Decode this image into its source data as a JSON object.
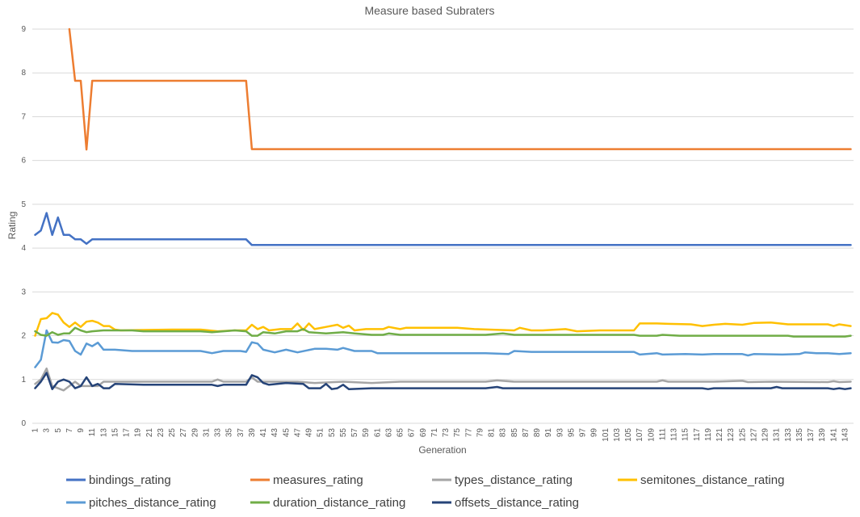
{
  "chart_data": {
    "type": "line",
    "title": "Measure based Subraters",
    "xlabel": "Generation",
    "ylabel": "Rating",
    "ylim": [
      0,
      9
    ],
    "yticks": [
      0,
      1,
      2,
      3,
      4,
      5,
      6,
      7,
      8,
      9
    ],
    "x_range": [
      1,
      144
    ],
    "x_tick_step": 2,
    "grid": "horizontal",
    "legend_position": "bottom",
    "series": [
      {
        "name": "bindings_rating",
        "color": "#4472c4",
        "points": [
          [
            1,
            4.3
          ],
          [
            2,
            4.4
          ],
          [
            3,
            4.8
          ],
          [
            4,
            4.3
          ],
          [
            5,
            4.7
          ],
          [
            6,
            4.3
          ],
          [
            7,
            4.3
          ],
          [
            8,
            4.2
          ],
          [
            9,
            4.2
          ],
          [
            10,
            4.1
          ],
          [
            11,
            4.2
          ],
          [
            38,
            4.2
          ],
          [
            39,
            4.07
          ],
          [
            144,
            4.07
          ]
        ]
      },
      {
        "name": "measures_rating",
        "color": "#ed7d31",
        "points": [
          [
            7,
            9.0
          ],
          [
            8,
            7.82
          ],
          [
            9,
            7.82
          ],
          [
            10,
            6.25
          ],
          [
            11,
            7.82
          ],
          [
            38,
            7.82
          ],
          [
            39,
            6.26
          ],
          [
            144,
            6.26
          ]
        ]
      },
      {
        "name": "types_distance_rating",
        "color": "#a5a5a5",
        "points": [
          [
            1,
            0.9
          ],
          [
            2,
            1.0
          ],
          [
            3,
            1.25
          ],
          [
            4,
            0.85
          ],
          [
            5,
            0.8
          ],
          [
            6,
            0.75
          ],
          [
            7,
            0.85
          ],
          [
            8,
            0.95
          ],
          [
            9,
            0.85
          ],
          [
            10,
            0.85
          ],
          [
            11,
            0.85
          ],
          [
            12,
            0.85
          ],
          [
            13,
            0.95
          ],
          [
            15,
            0.95
          ],
          [
            20,
            0.95
          ],
          [
            32,
            0.95
          ],
          [
            33,
            1.0
          ],
          [
            34,
            0.95
          ],
          [
            38,
            0.95
          ],
          [
            39,
            1.05
          ],
          [
            40,
            0.95
          ],
          [
            45,
            0.95
          ],
          [
            47,
            0.95
          ],
          [
            50,
            0.92
          ],
          [
            55,
            0.95
          ],
          [
            60,
            0.92
          ],
          [
            65,
            0.95
          ],
          [
            80,
            0.95
          ],
          [
            82,
            0.98
          ],
          [
            85,
            0.95
          ],
          [
            100,
            0.95
          ],
          [
            110,
            0.95
          ],
          [
            111,
            0.98
          ],
          [
            112,
            0.95
          ],
          [
            120,
            0.95
          ],
          [
            125,
            0.97
          ],
          [
            126,
            0.94
          ],
          [
            130,
            0.95
          ],
          [
            140,
            0.94
          ],
          [
            141,
            0.96
          ],
          [
            142,
            0.94
          ],
          [
            144,
            0.95
          ]
        ]
      },
      {
        "name": "semitones_distance_rating",
        "color": "#ffc000",
        "points": [
          [
            1,
            2.0
          ],
          [
            2,
            2.38
          ],
          [
            3,
            2.4
          ],
          [
            4,
            2.52
          ],
          [
            5,
            2.48
          ],
          [
            6,
            2.3
          ],
          [
            7,
            2.2
          ],
          [
            8,
            2.3
          ],
          [
            9,
            2.2
          ],
          [
            10,
            2.32
          ],
          [
            11,
            2.34
          ],
          [
            12,
            2.3
          ],
          [
            13,
            2.22
          ],
          [
            14,
            2.22
          ],
          [
            15,
            2.14
          ],
          [
            16,
            2.12
          ],
          [
            20,
            2.13
          ],
          [
            25,
            2.14
          ],
          [
            30,
            2.14
          ],
          [
            33,
            2.1
          ],
          [
            36,
            2.12
          ],
          [
            38,
            2.12
          ],
          [
            39,
            2.25
          ],
          [
            40,
            2.15
          ],
          [
            41,
            2.2
          ],
          [
            42,
            2.12
          ],
          [
            44,
            2.15
          ],
          [
            46,
            2.15
          ],
          [
            47,
            2.28
          ],
          [
            48,
            2.13
          ],
          [
            49,
            2.28
          ],
          [
            50,
            2.15
          ],
          [
            52,
            2.2
          ],
          [
            54,
            2.25
          ],
          [
            55,
            2.18
          ],
          [
            56,
            2.23
          ],
          [
            57,
            2.12
          ],
          [
            59,
            2.15
          ],
          [
            62,
            2.15
          ],
          [
            63,
            2.2
          ],
          [
            65,
            2.15
          ],
          [
            66,
            2.18
          ],
          [
            75,
            2.18
          ],
          [
            78,
            2.15
          ],
          [
            85,
            2.12
          ],
          [
            86,
            2.18
          ],
          [
            88,
            2.12
          ],
          [
            90,
            2.12
          ],
          [
            94,
            2.15
          ],
          [
            96,
            2.1
          ],
          [
            100,
            2.12
          ],
          [
            106,
            2.12
          ],
          [
            107,
            2.28
          ],
          [
            110,
            2.28
          ],
          [
            112,
            2.27
          ],
          [
            116,
            2.26
          ],
          [
            118,
            2.22
          ],
          [
            120,
            2.25
          ],
          [
            122,
            2.27
          ],
          [
            125,
            2.25
          ],
          [
            127,
            2.29
          ],
          [
            130,
            2.3
          ],
          [
            133,
            2.26
          ],
          [
            137,
            2.26
          ],
          [
            140,
            2.26
          ],
          [
            141,
            2.22
          ],
          [
            142,
            2.26
          ],
          [
            144,
            2.22
          ]
        ]
      },
      {
        "name": "pitches_distance_rating",
        "color": "#5b9bd5",
        "points": [
          [
            1,
            1.28
          ],
          [
            2,
            1.45
          ],
          [
            3,
            2.12
          ],
          [
            4,
            1.85
          ],
          [
            5,
            1.84
          ],
          [
            6,
            1.9
          ],
          [
            7,
            1.88
          ],
          [
            8,
            1.65
          ],
          [
            9,
            1.57
          ],
          [
            10,
            1.82
          ],
          [
            11,
            1.76
          ],
          [
            12,
            1.84
          ],
          [
            13,
            1.68
          ],
          [
            15,
            1.68
          ],
          [
            18,
            1.65
          ],
          [
            25,
            1.65
          ],
          [
            30,
            1.65
          ],
          [
            32,
            1.6
          ],
          [
            34,
            1.65
          ],
          [
            37,
            1.65
          ],
          [
            38,
            1.63
          ],
          [
            39,
            1.85
          ],
          [
            40,
            1.82
          ],
          [
            41,
            1.68
          ],
          [
            43,
            1.62
          ],
          [
            45,
            1.68
          ],
          [
            47,
            1.62
          ],
          [
            50,
            1.7
          ],
          [
            52,
            1.7
          ],
          [
            54,
            1.68
          ],
          [
            55,
            1.72
          ],
          [
            57,
            1.65
          ],
          [
            60,
            1.65
          ],
          [
            61,
            1.6
          ],
          [
            80,
            1.6
          ],
          [
            84,
            1.58
          ],
          [
            85,
            1.65
          ],
          [
            88,
            1.63
          ],
          [
            106,
            1.63
          ],
          [
            107,
            1.57
          ],
          [
            110,
            1.6
          ],
          [
            111,
            1.57
          ],
          [
            115,
            1.58
          ],
          [
            118,
            1.57
          ],
          [
            120,
            1.58
          ],
          [
            125,
            1.58
          ],
          [
            126,
            1.55
          ],
          [
            127,
            1.58
          ],
          [
            132,
            1.57
          ],
          [
            135,
            1.58
          ],
          [
            136,
            1.62
          ],
          [
            138,
            1.6
          ],
          [
            140,
            1.6
          ],
          [
            142,
            1.58
          ],
          [
            144,
            1.6
          ]
        ]
      },
      {
        "name": "duration_distance_rating",
        "color": "#70ad47",
        "points": [
          [
            1,
            2.1
          ],
          [
            2,
            2.02
          ],
          [
            3,
            2.0
          ],
          [
            4,
            2.08
          ],
          [
            5,
            2.02
          ],
          [
            6,
            2.05
          ],
          [
            7,
            2.05
          ],
          [
            8,
            2.18
          ],
          [
            9,
            2.12
          ],
          [
            10,
            2.08
          ],
          [
            11,
            2.1
          ],
          [
            13,
            2.12
          ],
          [
            18,
            2.12
          ],
          [
            20,
            2.1
          ],
          [
            25,
            2.1
          ],
          [
            30,
            2.1
          ],
          [
            32,
            2.08
          ],
          [
            34,
            2.1
          ],
          [
            36,
            2.12
          ],
          [
            38,
            2.1
          ],
          [
            39,
            2.0
          ],
          [
            40,
            2.0
          ],
          [
            41,
            2.08
          ],
          [
            43,
            2.05
          ],
          [
            45,
            2.1
          ],
          [
            47,
            2.1
          ],
          [
            48,
            2.15
          ],
          [
            49,
            2.08
          ],
          [
            52,
            2.05
          ],
          [
            55,
            2.08
          ],
          [
            57,
            2.05
          ],
          [
            60,
            2.02
          ],
          [
            62,
            2.02
          ],
          [
            63,
            2.05
          ],
          [
            65,
            2.02
          ],
          [
            80,
            2.02
          ],
          [
            83,
            2.05
          ],
          [
            85,
            2.02
          ],
          [
            106,
            2.02
          ],
          [
            107,
            2.0
          ],
          [
            110,
            2.0
          ],
          [
            111,
            2.02
          ],
          [
            114,
            2.0
          ],
          [
            133,
            2.0
          ],
          [
            134,
            1.98
          ],
          [
            143,
            1.98
          ],
          [
            144,
            2.0
          ]
        ]
      },
      {
        "name": "offsets_distance_rating",
        "color": "#264478",
        "points": [
          [
            1,
            0.8
          ],
          [
            2,
            0.95
          ],
          [
            3,
            1.15
          ],
          [
            4,
            0.78
          ],
          [
            5,
            0.95
          ],
          [
            6,
            1.0
          ],
          [
            7,
            0.95
          ],
          [
            8,
            0.8
          ],
          [
            9,
            0.85
          ],
          [
            10,
            1.05
          ],
          [
            11,
            0.85
          ],
          [
            12,
            0.9
          ],
          [
            13,
            0.8
          ],
          [
            14,
            0.8
          ],
          [
            15,
            0.9
          ],
          [
            20,
            0.88
          ],
          [
            32,
            0.88
          ],
          [
            33,
            0.85
          ],
          [
            34,
            0.88
          ],
          [
            38,
            0.88
          ],
          [
            39,
            1.1
          ],
          [
            40,
            1.05
          ],
          [
            41,
            0.92
          ],
          [
            42,
            0.88
          ],
          [
            45,
            0.92
          ],
          [
            48,
            0.9
          ],
          [
            49,
            0.8
          ],
          [
            51,
            0.8
          ],
          [
            52,
            0.9
          ],
          [
            53,
            0.78
          ],
          [
            54,
            0.8
          ],
          [
            55,
            0.88
          ],
          [
            56,
            0.78
          ],
          [
            60,
            0.8
          ],
          [
            80,
            0.8
          ],
          [
            82,
            0.83
          ],
          [
            83,
            0.8
          ],
          [
            118,
            0.8
          ],
          [
            119,
            0.78
          ],
          [
            120,
            0.8
          ],
          [
            130,
            0.8
          ],
          [
            131,
            0.83
          ],
          [
            132,
            0.8
          ],
          [
            140,
            0.8
          ],
          [
            141,
            0.78
          ],
          [
            142,
            0.8
          ],
          [
            143,
            0.78
          ],
          [
            144,
            0.8
          ]
        ]
      }
    ]
  }
}
